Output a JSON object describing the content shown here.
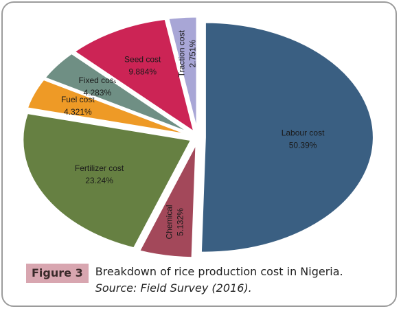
{
  "chart_data": {
    "type": "pie",
    "exploded": true,
    "slices": [
      {
        "label": "Labour cost",
        "value": 50.39,
        "value_label": "50.39%",
        "color": "#3a5f82"
      },
      {
        "label": "Chemical",
        "value": 5.132,
        "value_label": "5.132%",
        "color": "#a3485a"
      },
      {
        "label": "Fertilizer cost",
        "value": 23.24,
        "value_label": "23.24%",
        "color": "#668042"
      },
      {
        "label": "Fuel cost",
        "value": 4.321,
        "value_label": "4.321%",
        "color": "#ee9a26"
      },
      {
        "label": "Fixed cost",
        "value": 4.283,
        "value_label": "4.283%",
        "color": "#6f8f84"
      },
      {
        "label": "Seed cost",
        "value": 9.884,
        "value_label": "9.884%",
        "color": "#cc2455"
      },
      {
        "label": "Traction cost",
        "value": 2.751,
        "value_label": "2.751%",
        "color": "#a8a6d6"
      }
    ]
  },
  "caption": {
    "figure_label": "Figure 3",
    "text": "Breakdown of rice production cost in Nigeria. ",
    "source": "Source: Field Survey (2016)."
  },
  "colors": {
    "frame": "#9b9b9b",
    "caption_label_bg": "#d8a6b0"
  }
}
